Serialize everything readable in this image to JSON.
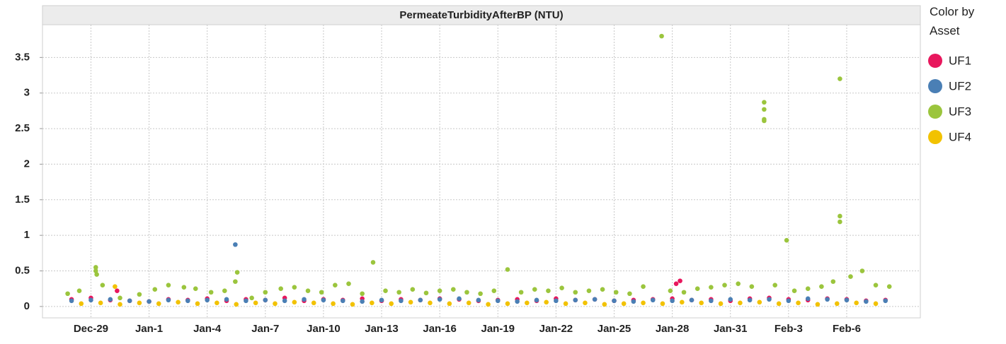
{
  "chart_data": {
    "type": "scatter",
    "title": "PermeateTurbidityAfterBP (NTU)",
    "legend_title": "Color by Asset",
    "legend_position": "right",
    "grid": true,
    "xlim": [
      -2.5,
      42.8
    ],
    "ylim": [
      -0.16,
      3.96
    ],
    "xticks": [
      {
        "value": 0,
        "label": "Dec-29"
      },
      {
        "value": 3,
        "label": "Jan-1"
      },
      {
        "value": 6,
        "label": "Jan-4"
      },
      {
        "value": 9,
        "label": "Jan-7"
      },
      {
        "value": 12,
        "label": "Jan-10"
      },
      {
        "value": 15,
        "label": "Jan-13"
      },
      {
        "value": 18,
        "label": "Jan-16"
      },
      {
        "value": 21,
        "label": "Jan-19"
      },
      {
        "value": 24,
        "label": "Jan-22"
      },
      {
        "value": 27,
        "label": "Jan-25"
      },
      {
        "value": 30,
        "label": "Jan-28"
      },
      {
        "value": 33,
        "label": "Jan-31"
      },
      {
        "value": 36,
        "label": "Feb-3"
      },
      {
        "value": 39,
        "label": "Feb-6"
      }
    ],
    "yticks": [
      0,
      0.5,
      1,
      1.5,
      2,
      2.5,
      3,
      3.5
    ],
    "series": [
      {
        "name": "UF3",
        "color": "#9bc53d",
        "x": [
          -1.2,
          -0.6,
          0.25,
          0.25,
          0.3,
          0.6,
          1.5,
          2.5,
          3.3,
          4.0,
          4.8,
          5.4,
          6.2,
          6.9,
          7.45,
          7.55,
          8.3,
          9.0,
          9.8,
          10.5,
          11.2,
          11.9,
          12.6,
          13.3,
          14.0,
          14.56,
          15.2,
          15.9,
          16.6,
          17.3,
          18.0,
          18.7,
          19.4,
          20.1,
          20.8,
          21.5,
          22.2,
          22.9,
          23.6,
          24.3,
          25.0,
          25.7,
          26.4,
          27.1,
          27.8,
          28.5,
          29.45,
          29.9,
          30.6,
          31.3,
          32.0,
          32.7,
          33.4,
          34.1,
          34.74,
          34.74,
          34.74,
          34.74,
          35.3,
          35.9,
          36.3,
          37.0,
          37.7,
          38.3,
          38.65,
          38.65,
          38.65,
          39.2,
          39.8,
          40.5,
          41.2
        ],
        "values": [
          0.18,
          0.22,
          0.55,
          0.5,
          0.45,
          0.3,
          0.12,
          0.17,
          0.24,
          0.3,
          0.27,
          0.25,
          0.2,
          0.22,
          0.35,
          0.48,
          0.12,
          0.2,
          0.25,
          0.27,
          0.22,
          0.2,
          0.3,
          0.32,
          0.18,
          0.62,
          0.22,
          0.2,
          0.24,
          0.19,
          0.22,
          0.24,
          0.2,
          0.18,
          0.22,
          0.52,
          0.2,
          0.24,
          0.22,
          0.26,
          0.2,
          0.22,
          0.24,
          0.2,
          0.18,
          0.28,
          3.8,
          0.22,
          0.2,
          0.25,
          0.27,
          0.3,
          0.32,
          0.28,
          2.87,
          2.77,
          2.63,
          2.61,
          0.3,
          0.93,
          0.22,
          0.25,
          0.28,
          0.35,
          3.2,
          1.27,
          1.19,
          0.42,
          0.5,
          0.3,
          0.28
        ]
      },
      {
        "name": "UF1",
        "color": "#e8175d",
        "x": [
          -1,
          0,
          1,
          1.35,
          2,
          3,
          4,
          5,
          6,
          7,
          8,
          9,
          10,
          11,
          12,
          13,
          14,
          15,
          16,
          17,
          18,
          19,
          20,
          21,
          22,
          23,
          24,
          25,
          26,
          27,
          28,
          29,
          30,
          30.2,
          30.4,
          31,
          32,
          33,
          34,
          35,
          36,
          37,
          38,
          39,
          40,
          41
        ],
        "values": [
          0.1,
          0.12,
          0.09,
          0.22,
          0.08,
          0.07,
          0.1,
          0.09,
          0.11,
          0.08,
          0.1,
          0.09,
          0.12,
          0.08,
          0.1,
          0.09,
          0.11,
          0.08,
          0.1,
          0.09,
          0.11,
          0.1,
          0.08,
          0.09,
          0.1,
          0.08,
          0.11,
          0.09,
          0.1,
          0.08,
          0.09,
          0.1,
          0.11,
          0.32,
          0.36,
          0.09,
          0.1,
          0.08,
          0.11,
          0.12,
          0.1,
          0.09,
          0.11,
          0.1,
          0.08,
          0.09
        ]
      },
      {
        "name": "UF2",
        "color": "#4a7fb5",
        "x": [
          -1,
          0,
          1,
          2,
          3,
          4,
          5,
          6,
          7,
          7.45,
          8,
          9,
          10,
          11,
          12,
          13,
          14,
          15,
          16,
          17,
          18,
          19,
          20,
          21,
          22,
          23,
          24,
          25,
          26,
          27,
          28,
          29,
          30,
          31,
          32,
          33,
          34,
          35,
          36,
          37,
          38,
          39,
          40,
          41
        ],
        "values": [
          0.08,
          0.09,
          0.1,
          0.08,
          0.07,
          0.09,
          0.08,
          0.09,
          0.1,
          0.87,
          0.08,
          0.09,
          0.08,
          0.1,
          0.09,
          0.08,
          0.07,
          0.09,
          0.08,
          0.09,
          0.1,
          0.11,
          0.09,
          0.08,
          0.07,
          0.09,
          0.08,
          0.09,
          0.1,
          0.08,
          0.07,
          0.09,
          0.08,
          0.09,
          0.08,
          0.1,
          0.09,
          0.1,
          0.08,
          0.11,
          0.1,
          0.09,
          0.07,
          0.08
        ]
      },
      {
        "name": "UF4",
        "color": "#f2c200",
        "x": [
          -0.5,
          0.5,
          1.24,
          1.5,
          2.5,
          3.5,
          4.5,
          5.5,
          6.5,
          7.5,
          8.5,
          9.5,
          10.5,
          11.5,
          12.5,
          13.5,
          14.5,
          15.5,
          16.5,
          17.5,
          18.5,
          19.5,
          20.5,
          21.5,
          22.5,
          23.5,
          24.5,
          25.5,
          26.5,
          27.5,
          28.5,
          29.5,
          30.5,
          31.5,
          32.5,
          33.5,
          34.5,
          35.5,
          36.5,
          37.5,
          38.5,
          39.5,
          40.5
        ],
        "values": [
          0.04,
          0.05,
          0.28,
          0.03,
          0.05,
          0.04,
          0.06,
          0.04,
          0.05,
          0.03,
          0.05,
          0.04,
          0.06,
          0.05,
          0.04,
          0.03,
          0.05,
          0.04,
          0.06,
          0.05,
          0.04,
          0.05,
          0.03,
          0.04,
          0.05,
          0.06,
          0.04,
          0.05,
          0.03,
          0.04,
          0.05,
          0.04,
          0.06,
          0.05,
          0.04,
          0.05,
          0.06,
          0.04,
          0.05,
          0.03,
          0.04,
          0.05,
          0.04
        ]
      }
    ]
  }
}
